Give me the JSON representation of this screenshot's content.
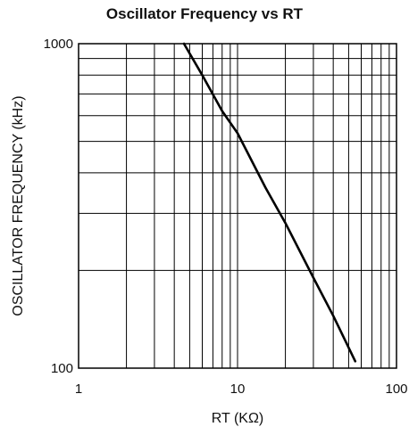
{
  "chart_data": {
    "type": "line",
    "title": "Oscillator Frequency vs RT",
    "xlabel": "RT (KΩ)",
    "ylabel": "OSCILLATOR FREQUENCY (kHz)",
    "x_scale": "log",
    "y_scale": "log",
    "xlim": [
      1,
      100
    ],
    "ylim": [
      100,
      1000
    ],
    "x_ticks": [
      "1",
      "10",
      "100"
    ],
    "y_ticks": [
      "100",
      "1000"
    ],
    "grid": true,
    "series": [
      {
        "x": [
          4.6,
          6,
          8,
          10,
          15,
          20,
          30,
          40,
          55
        ],
        "y": [
          1000,
          800,
          620,
          530,
          360,
          280,
          190,
          145,
          105
        ]
      }
    ]
  }
}
